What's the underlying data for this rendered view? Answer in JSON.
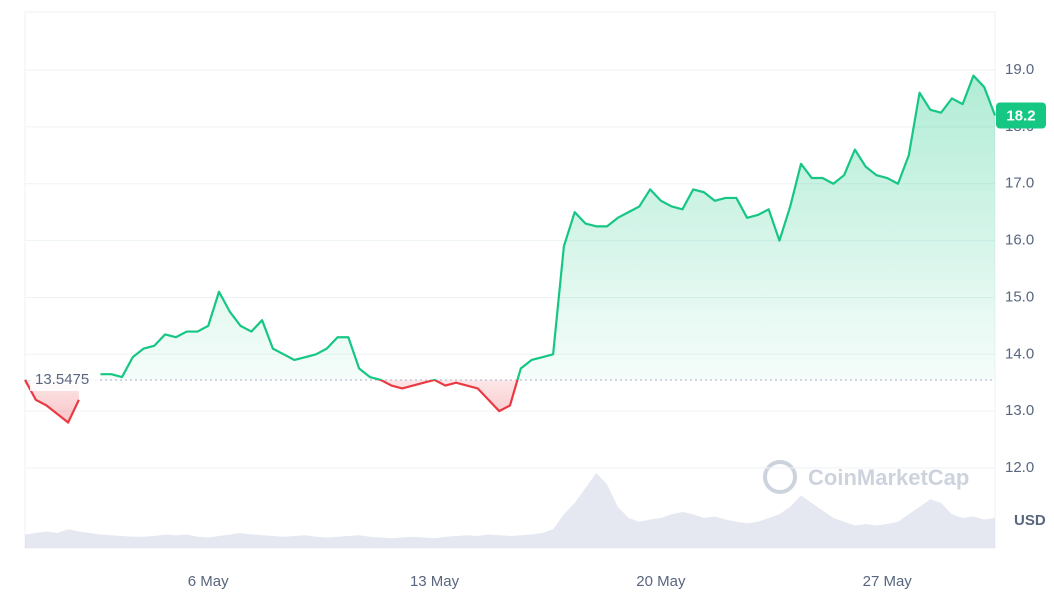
{
  "chart_data": {
    "type": "price-line",
    "categories": [
      null,
      null,
      null,
      null,
      null,
      null,
      null,
      null,
      null,
      null,
      null,
      null,
      null,
      null,
      null,
      null,
      null,
      "6 May",
      null,
      null,
      null,
      null,
      null,
      null,
      null,
      null,
      null,
      null,
      null,
      null,
      null,
      null,
      null,
      null,
      null,
      null,
      null,
      null,
      "13 May",
      null,
      null,
      null,
      null,
      null,
      null,
      null,
      null,
      null,
      null,
      null,
      null,
      null,
      null,
      null,
      null,
      null,
      null,
      null,
      null,
      "20 May",
      null,
      null,
      null,
      null,
      null,
      null,
      null,
      null,
      null,
      null,
      null,
      null,
      null,
      null,
      null,
      null,
      null,
      null,
      null,
      null,
      "27 May",
      null,
      null,
      null,
      null,
      null,
      null,
      null,
      null,
      null,
      null
    ],
    "values": [
      13.55,
      13.2,
      13.1,
      12.95,
      12.8,
      13.2,
      null,
      13.65,
      13.65,
      13.6,
      13.95,
      14.1,
      14.15,
      14.35,
      14.3,
      14.4,
      14.4,
      14.5,
      15.1,
      14.75,
      14.5,
      14.4,
      14.6,
      14.1,
      14.0,
      13.9,
      13.95,
      14.0,
      14.1,
      14.3,
      14.3,
      13.75,
      13.6,
      13.55,
      13.45,
      13.4,
      13.45,
      13.5,
      13.55,
      13.45,
      13.5,
      13.45,
      13.4,
      13.2,
      13.0,
      13.1,
      13.75,
      13.9,
      13.95,
      14.0,
      15.9,
      16.5,
      16.3,
      16.25,
      16.25,
      16.4,
      16.5,
      16.6,
      16.9,
      16.7,
      16.6,
      16.55,
      16.9,
      16.85,
      16.7,
      16.75,
      16.75,
      16.4,
      16.45,
      16.55,
      16.0,
      16.6,
      17.35,
      17.1,
      17.1,
      17.0,
      17.15,
      17.6,
      17.3,
      17.15,
      17.1,
      17.0,
      17.5,
      18.6,
      18.3,
      18.25,
      18.5,
      18.4,
      18.9,
      18.7,
      18.2
    ],
    "volume": [
      18,
      20,
      22,
      20,
      25,
      22,
      20,
      18,
      17,
      16,
      15,
      15,
      16,
      18,
      17,
      18,
      15,
      14,
      16,
      18,
      20,
      18,
      17,
      16,
      15,
      16,
      17,
      15,
      14,
      15,
      16,
      17,
      15,
      14,
      13,
      14,
      15,
      14,
      13,
      15,
      16,
      17,
      16,
      18,
      17,
      16,
      17,
      18,
      20,
      25,
      45,
      60,
      80,
      100,
      85,
      55,
      40,
      35,
      38,
      40,
      45,
      48,
      45,
      40,
      42,
      38,
      35,
      33,
      35,
      40,
      45,
      55,
      70,
      60,
      50,
      40,
      35,
      30,
      32,
      30,
      32,
      35,
      45,
      55,
      65,
      60,
      45,
      40,
      42,
      38,
      40
    ],
    "baseline": 13.5475,
    "up_color": "#16c784",
    "down_color": "#ea3943",
    "volume_color": "#cfd6e4",
    "ylim": [
      11.3,
      19.9
    ],
    "yticks": [
      {
        "value": 12,
        "label": "12.0"
      },
      {
        "value": 13,
        "label": "13.0"
      },
      {
        "value": 14,
        "label": "14.0"
      },
      {
        "value": 15,
        "label": "15.0"
      },
      {
        "value": 16,
        "label": "16.0"
      },
      {
        "value": 17,
        "label": "17.0"
      },
      {
        "value": 18,
        "label": "18.0"
      },
      {
        "value": 19,
        "label": "19.0"
      }
    ],
    "grid": true,
    "currency": "USD",
    "watermark": "CoinMarketCap"
  }
}
